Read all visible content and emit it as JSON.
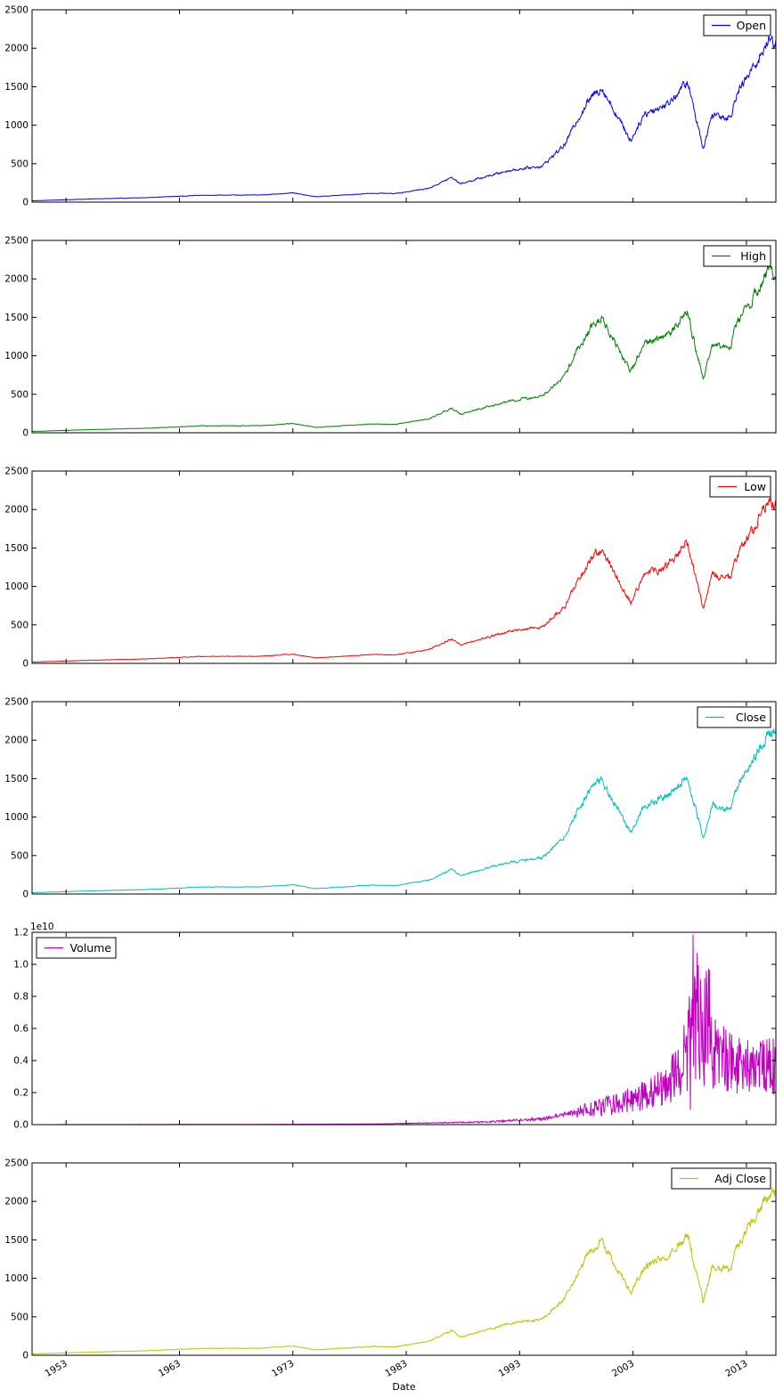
{
  "chart_data": {
    "type": "line",
    "xlabel": "Date",
    "x_ticks": [
      "1953",
      "1963",
      "1973",
      "1983",
      "1993",
      "2003",
      "2013"
    ],
    "x_tick_years": [
      1953,
      1963,
      1973,
      1983,
      1993,
      2003,
      2013
    ],
    "xlim": [
      1950.0,
      2015.6
    ],
    "grid": false,
    "key_years": [
      1950,
      1955,
      1960,
      1965,
      1970,
      1973,
      1975,
      1980,
      1982,
      1985,
      1987,
      1987.8,
      1990,
      1992,
      1995,
      1997,
      1998,
      1999,
      2000.2,
      2001.5,
      2002.8,
      2004,
      2006,
      2007.8,
      2009.2,
      2010,
      2011.6,
      2012,
      2014,
      2015,
      2015.6
    ],
    "price_values": [
      17,
      40,
      58,
      90,
      92,
      120,
      70,
      115,
      110,
      180,
      320,
      240,
      330,
      410,
      470,
      750,
      1050,
      1300,
      1500,
      1150,
      800,
      1150,
      1270,
      1560,
      700,
      1150,
      1100,
      1360,
      1850,
      2110,
      2080
    ],
    "volume_key_years": [
      1950,
      1970,
      1980,
      1985,
      1990,
      1995,
      2000,
      2003,
      2006,
      2008,
      2009,
      2010,
      2012,
      2015.6
    ],
    "volume_values": [
      1000000,
      15000000,
      40000000,
      100000000,
      160000000,
      350000000,
      1000000000,
      1500000000,
      2300000000,
      4500000000,
      6000000000,
      4500000000,
      3500000000,
      3600000000
    ],
    "panels": [
      {
        "series": "Open",
        "color": "#0000ff",
        "ylim": [
          0,
          2500
        ],
        "yticks": [
          "0",
          "500",
          "1000",
          "1500",
          "2000",
          "2500"
        ],
        "legend_loc": "top-right"
      },
      {
        "series": "High",
        "color": "#008000",
        "ylim": [
          0,
          2500
        ],
        "yticks": [
          "0",
          "500",
          "1000",
          "1500",
          "2000",
          "2500"
        ],
        "legend_loc": "top-right"
      },
      {
        "series": "Low",
        "color": "#ff0000",
        "ylim": [
          0,
          2500
        ],
        "yticks": [
          "0",
          "500",
          "1000",
          "1500",
          "2000",
          "2500"
        ],
        "legend_loc": "top-right"
      },
      {
        "series": "Close",
        "color": "#00bfbf",
        "ylim": [
          0,
          2500
        ],
        "yticks": [
          "0",
          "500",
          "1000",
          "1500",
          "2000",
          "2500"
        ],
        "legend_loc": "top-right"
      },
      {
        "series": "Volume",
        "color": "#bf00bf",
        "ylim": [
          0,
          12000000000
        ],
        "yticks": [
          "0.0",
          "0.2",
          "0.4",
          "0.6",
          "0.8",
          "1.0",
          "1.2"
        ],
        "offset_text": "1e10",
        "legend_loc": "top-left"
      },
      {
        "series": "Adj Close",
        "color": "#bfbf00",
        "ylim": [
          0,
          2500
        ],
        "yticks": [
          "0",
          "500",
          "1000",
          "1500",
          "2000",
          "2500"
        ],
        "legend_loc": "top-right"
      }
    ]
  }
}
